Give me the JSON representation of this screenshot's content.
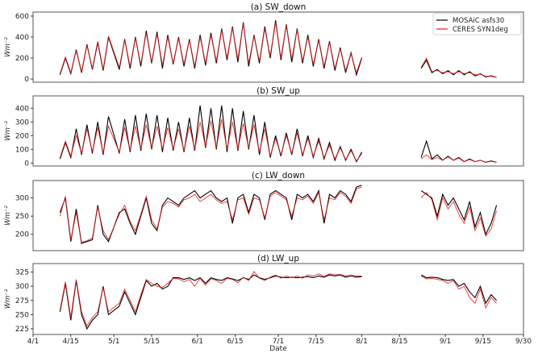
{
  "chart_data": {
    "type": "line",
    "xlabel": "Date",
    "x_unit": "days since 4/1",
    "xlim": [
      0,
      182
    ],
    "x_ticks": [
      {
        "v": 0,
        "label": "4/1"
      },
      {
        "v": 14,
        "label": "4/15"
      },
      {
        "v": 30,
        "label": "5/1"
      },
      {
        "v": 44,
        "label": "5/15"
      },
      {
        "v": 61,
        "label": "6/1"
      },
      {
        "v": 75,
        "label": "6/15"
      },
      {
        "v": 91,
        "label": "7/1"
      },
      {
        "v": 105,
        "label": "7/15"
      },
      {
        "v": 122,
        "label": "8/1"
      },
      {
        "v": 136,
        "label": "8/15"
      },
      {
        "v": 153,
        "label": "9/1"
      },
      {
        "v": 167,
        "label": "9/15"
      },
      {
        "v": 182,
        "label": "9/30"
      }
    ],
    "legend": {
      "placement": "top-right",
      "entries": [
        {
          "name": "MOSAiC asfs30",
          "color": "#000000"
        },
        {
          "name": "CERES SYN1deg",
          "color": "#e8191a"
        }
      ]
    },
    "ylabel": "Wm⁻²",
    "x": [
      10,
      12,
      14,
      16,
      18,
      20,
      22,
      24,
      26,
      28,
      32,
      34,
      36,
      38,
      40,
      42,
      44,
      46,
      48,
      50,
      52,
      54,
      56,
      58,
      60,
      62,
      64,
      66,
      68,
      70,
      72,
      74,
      76,
      78,
      80,
      82,
      84,
      86,
      88,
      90,
      92,
      94,
      96,
      98,
      100,
      102,
      104,
      106,
      108,
      110,
      112,
      114,
      116,
      118,
      120,
      122,
      144,
      146,
      148,
      150,
      152,
      154,
      156,
      158,
      160,
      162,
      164,
      166,
      168,
      170,
      172
    ],
    "panels": [
      {
        "title": "(a) SW_down",
        "ylim": [
          -31,
          638
        ],
        "yticks": [
          0,
          200,
          400,
          600
        ],
        "show_legend": true,
        "series": [
          {
            "name": "MOSAiC asfs30",
            "values": [
              40,
              200,
              50,
              280,
              60,
              330,
              90,
              350,
              80,
              400,
              90,
              380,
              100,
              400,
              120,
              460,
              150,
              450,
              100,
              420,
              140,
              400,
              120,
              380,
              100,
              420,
              130,
              440,
              150,
              480,
              180,
              500,
              160,
              540,
              120,
              420,
              150,
              500,
              200,
              560,
              180,
              520,
              160,
              480,
              150,
              420,
              120,
              380,
              100,
              360,
              80,
              300,
              60,
              250,
              40,
              200,
              100,
              180,
              60,
              90,
              50,
              80,
              40,
              80,
              40,
              70,
              30,
              50,
              20,
              30,
              15
            ]
          },
          {
            "name": "CERES SYN1deg",
            "values": [
              50,
              210,
              60,
              270,
              70,
              320,
              100,
              360,
              90,
              410,
              110,
              370,
              120,
              390,
              140,
              440,
              160,
              430,
              130,
              400,
              150,
              390,
              140,
              370,
              120,
              400,
              150,
              420,
              170,
              470,
              200,
              490,
              190,
              530,
              150,
              410,
              170,
              480,
              220,
              540,
              200,
              510,
              190,
              470,
              170,
              400,
              140,
              370,
              120,
              350,
              100,
              290,
              80,
              240,
              60,
              210,
              110,
              200,
              70,
              80,
              60,
              70,
              50,
              70,
              50,
              60,
              40,
              45,
              25,
              25,
              15
            ]
          }
        ]
      },
      {
        "title": "(b) SW_up",
        "ylim": [
          -22,
          490
        ],
        "yticks": [
          0,
          100,
          200,
          300,
          400
        ],
        "show_legend": false,
        "series": [
          {
            "name": "MOSAiC asfs30",
            "values": [
              30,
              150,
              40,
              250,
              60,
              280,
              70,
              300,
              60,
              340,
              70,
              320,
              80,
              350,
              90,
              360,
              100,
              350,
              80,
              330,
              90,
              300,
              80,
              330,
              90,
              420,
              110,
              400,
              100,
              420,
              80,
              400,
              90,
              380,
              100,
              350,
              60,
              300,
              40,
              200,
              50,
              220,
              60,
              250,
              50,
              200,
              40,
              180,
              30,
              150,
              20,
              120,
              20,
              100,
              10,
              80,
              40,
              160,
              30,
              60,
              20,
              50,
              20,
              40,
              10,
              30,
              10,
              20,
              5,
              15,
              5
            ]
          },
          {
            "name": "CERES SYN1deg",
            "values": [
              40,
              160,
              50,
              200,
              70,
              250,
              80,
              260,
              70,
              270,
              80,
              260,
              90,
              270,
              100,
              280,
              110,
              270,
              100,
              260,
              100,
              250,
              90,
              270,
              100,
              300,
              120,
              310,
              110,
              320,
              100,
              300,
              100,
              290,
              110,
              280,
              80,
              250,
              50,
              180,
              60,
              200,
              70,
              220,
              60,
              180,
              50,
              160,
              40,
              130,
              30,
              110,
              25,
              90,
              15,
              70,
              30,
              60,
              25,
              40,
              20,
              45,
              20,
              35,
              10,
              25,
              10,
              20,
              5,
              12,
              5
            ]
          }
        ]
      },
      {
        "title": "(c) LW_down",
        "ylim": [
          155,
          348
        ],
        "yticks": [
          200,
          250,
          300
        ],
        "show_legend": false,
        "series": [
          {
            "name": "MOSAiC asfs30",
            "values": [
              260,
              300,
              180,
              270,
              175,
              180,
              185,
              280,
              200,
              180,
              260,
              270,
              230,
              200,
              250,
              300,
              230,
              210,
              280,
              300,
              290,
              280,
              300,
              310,
              320,
              300,
              310,
              320,
              300,
              290,
              300,
              230,
              300,
              310,
              260,
              310,
              300,
              240,
              310,
              320,
              310,
              300,
              240,
              310,
              300,
              310,
              290,
              320,
              230,
              310,
              300,
              320,
              310,
              290,
              330,
              335,
              320,
              310,
              300,
              250,
              310,
              280,
              300,
              270,
              240,
              290,
              220,
              260,
              200,
              230,
              280
            ]
          },
          {
            "name": "CERES SYN1deg",
            "values": [
              250,
              305,
              185,
              260,
              178,
              182,
              190,
              275,
              210,
              185,
              255,
              280,
              235,
              210,
              255,
              305,
              240,
              215,
              275,
              290,
              285,
              275,
              295,
              300,
              310,
              290,
              300,
              310,
              295,
              285,
              290,
              240,
              295,
              300,
              255,
              300,
              295,
              245,
              305,
              315,
              305,
              295,
              250,
              300,
              295,
              305,
              285,
              315,
              240,
              300,
              295,
              315,
              305,
              285,
              325,
              330,
              300,
              315,
              295,
              240,
              300,
              270,
              290,
              255,
              230,
              275,
              210,
              245,
              195,
              215,
              265
            ]
          }
        ]
      },
      {
        "title": "(d) LW_up",
        "ylim": [
          215,
          340
        ],
        "yticks": [
          225,
          250,
          275,
          300,
          325
        ],
        "show_legend": false,
        "series": [
          {
            "name": "MOSAiC asfs30",
            "values": [
              255,
              305,
              240,
              310,
              250,
              225,
              240,
              250,
              300,
              250,
              265,
              290,
              270,
              250,
              280,
              310,
              300,
              305,
              295,
              300,
              315,
              315,
              312,
              315,
              310,
              315,
              305,
              315,
              312,
              310,
              315,
              313,
              310,
              315,
              312,
              320,
              315,
              312,
              315,
              318,
              316,
              315,
              316,
              315,
              316,
              317,
              315,
              318,
              316,
              320,
              318,
              320,
              316,
              318,
              316,
              317,
              320,
              315,
              316,
              315,
              312,
              310,
              312,
              300,
              305,
              290,
              280,
              300,
              270,
              285,
              275
            ]
          },
          {
            "name": "CERES SYN1deg",
            "values": [
              258,
              308,
              245,
              312,
              255,
              230,
              245,
              255,
              298,
              255,
              270,
              295,
              275,
              255,
              285,
              312,
              305,
              300,
              298,
              305,
              314,
              313,
              308,
              312,
              300,
              314,
              302,
              313,
              310,
              305,
              314,
              312,
              306,
              316,
              310,
              326,
              314,
              310,
              316,
              320,
              314,
              318,
              315,
              318,
              314,
              320,
              318,
              322,
              317,
              322,
              320,
              321,
              318,
              320,
              318,
              318,
              318,
              313,
              314,
              312,
              310,
              305,
              310,
              295,
              300,
              280,
              270,
              295,
              262,
              280,
              270
            ]
          }
        ]
      }
    ]
  }
}
